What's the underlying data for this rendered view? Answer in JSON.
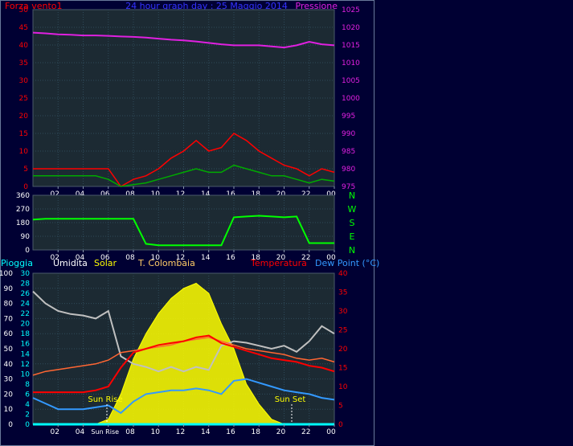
{
  "colors": {
    "background": "#000033",
    "plot_background": "#1c2a33",
    "grid": "#2e4a5a",
    "wind": "#ff0000",
    "wind_dir": "#00ff00",
    "gust": "#00aa00",
    "pressure": "#e020e0",
    "humidity": "#c0c0c0",
    "solar": "#ffff00",
    "t_colombaia": "#ff6633",
    "temperature": "#ff0000",
    "dewpoint": "#3399ff",
    "rain": "#00ffff"
  },
  "top": {
    "title": "24 hour graph day : 25 Maggio 2014",
    "left_label": "Forza vento1",
    "right_label": "Pressione",
    "left_ticks": [
      "0",
      "5",
      "10",
      "15",
      "20",
      "25",
      "30",
      "35",
      "40",
      "45",
      "50"
    ],
    "right_ticks": [
      "975",
      "980",
      "985",
      "990",
      "995",
      "1000",
      "1005",
      "1010",
      "1015",
      "1020",
      "1025"
    ],
    "x_ticks": [
      "02",
      "04",
      "06",
      "08",
      "10",
      "12",
      "14",
      "16",
      "18",
      "20",
      "22",
      "00"
    ]
  },
  "mid": {
    "left_ticks": [
      "0",
      "90",
      "180",
      "270",
      "360"
    ],
    "compass": [
      "N",
      "W",
      "S",
      "E",
      "N"
    ],
    "x_ticks": [
      "02",
      "04",
      "06",
      "08",
      "10",
      "12",
      "14",
      "16",
      "18",
      "20",
      "22",
      "00"
    ]
  },
  "bottom": {
    "labels": {
      "rain": "Pioggia",
      "humidity": "Umidita",
      "solar": "Solar",
      "t_colombaia": "T. Colombaia",
      "temperature": "Temperatura",
      "dewpoint": "Dew Point (°C)"
    },
    "humidity_ticks": [
      "0",
      "10",
      "20",
      "30",
      "40",
      "50",
      "60",
      "70",
      "80",
      "90",
      "100"
    ],
    "rain_ticks": [
      "0",
      "2",
      "4",
      "6",
      "8",
      "10",
      "12",
      "14",
      "16",
      "18",
      "20",
      "22",
      "24",
      "26",
      "28",
      "30"
    ],
    "temp_ticks": [
      "0",
      "5",
      "10",
      "15",
      "20",
      "25",
      "30",
      "35",
      "40"
    ],
    "x_ticks": [
      "02",
      "04",
      "Sun Rise",
      "08",
      "10",
      "12",
      "14",
      "16",
      "18",
      "20",
      "22",
      "00"
    ],
    "sun_rise_label": "Sun Rise",
    "sun_set_label": "Sun Set"
  },
  "chart_data": [
    {
      "type": "line",
      "title": "24 hour graph day : 25 Maggio 2014",
      "x_range_hours": [
        0,
        24
      ],
      "y_left_label": "Forza vento1",
      "y_left_range": [
        0,
        50
      ],
      "y_right_label": "Pressione",
      "y_right_range": [
        975,
        1025
      ],
      "grid": true,
      "series": [
        {
          "name": "Pressione",
          "axis": "right",
          "x": [
            0,
            1,
            2,
            3,
            4,
            5,
            6,
            7,
            8,
            9,
            10,
            11,
            12,
            13,
            14,
            15,
            16,
            17,
            18,
            19,
            20,
            21,
            22,
            23,
            24
          ],
          "y": [
            1018.5,
            1018.3,
            1018.0,
            1017.9,
            1017.7,
            1017.7,
            1017.6,
            1017.4,
            1017.3,
            1017.1,
            1016.8,
            1016.5,
            1016.3,
            1016.0,
            1015.6,
            1015.2,
            1014.9,
            1014.9,
            1014.9,
            1014.6,
            1014.3,
            1014.9,
            1015.9,
            1015.2,
            1014.9
          ]
        },
        {
          "name": "Forza vento1",
          "axis": "left",
          "x": [
            0,
            1,
            2,
            3,
            4,
            5,
            6,
            7,
            8,
            9,
            10,
            11,
            12,
            13,
            14,
            15,
            16,
            17,
            18,
            19,
            20,
            21,
            22,
            23,
            24
          ],
          "y": [
            5,
            5,
            5,
            5,
            5,
            5,
            5,
            0,
            2,
            3,
            5,
            8,
            10,
            13,
            10,
            11,
            15,
            13,
            10,
            8,
            6,
            5,
            3,
            5,
            4
          ]
        },
        {
          "axis": "left",
          "x": [
            0,
            1,
            2,
            3,
            4,
            5,
            6,
            7,
            8,
            9,
            10,
            11,
            12,
            13,
            14,
            15,
            16,
            17,
            18,
            19,
            20,
            21,
            22,
            23,
            24
          ],
          "y": [
            3,
            3,
            3,
            3,
            3,
            3,
            2,
            0,
            0.5,
            1,
            2,
            3,
            4,
            5,
            4,
            4,
            6,
            5,
            4,
            3,
            3,
            2,
            1,
            2,
            1.5
          ]
        }
      ]
    },
    {
      "type": "line",
      "x_range_hours": [
        0,
        24
      ],
      "y_range": [
        0,
        360
      ],
      "y_ticks_right": [
        "N",
        "W",
        "S",
        "E",
        "N"
      ],
      "series": [
        {
          "axis": "left",
          "x": [
            0,
            1,
            2,
            3,
            4,
            5,
            6,
            7,
            8,
            9,
            10,
            11,
            12,
            13,
            14,
            15,
            16,
            17,
            18,
            19,
            20,
            21,
            22,
            23,
            24
          ],
          "y": [
            200,
            205,
            205,
            205,
            205,
            205,
            205,
            205,
            205,
            40,
            30,
            30,
            30,
            30,
            30,
            30,
            215,
            220,
            225,
            220,
            215,
            220,
            45,
            45,
            45
          ]
        }
      ]
    },
    {
      "type": "line",
      "x_range_hours": [
        0,
        24
      ],
      "y_left_outer_range": [
        0,
        100
      ],
      "y_left_inner_range": [
        0,
        30
      ],
      "y_right_range": [
        0,
        40
      ],
      "grid": true,
      "series": [
        {
          "name": "Umidita",
          "axis": "left_outer",
          "x": [
            0,
            1,
            2,
            3,
            4,
            5,
            6,
            7,
            8,
            9,
            10,
            11,
            12,
            13,
            14,
            15,
            16,
            17,
            18,
            19,
            20,
            21,
            22,
            23,
            24
          ],
          "y": [
            88,
            80,
            75,
            73,
            72,
            70,
            75,
            45,
            40,
            38,
            35,
            38,
            35,
            38,
            36,
            52,
            55,
            54,
            52,
            50,
            52,
            48,
            55,
            65,
            60
          ]
        },
        {
          "name": "Solar",
          "axis": "left_inner",
          "x": [
            0,
            1,
            2,
            3,
            4,
            5,
            6,
            7,
            8,
            9,
            10,
            11,
            12,
            13,
            14,
            15,
            16,
            17,
            18,
            19,
            20,
            21,
            22,
            23,
            24
          ],
          "y": [
            0,
            0,
            0,
            0,
            0,
            0,
            1,
            6,
            13,
            18,
            22,
            25,
            27,
            28,
            26,
            20,
            15,
            8,
            4,
            1,
            0,
            0,
            0,
            0,
            0
          ]
        },
        {
          "name": "T. Colombaia",
          "axis": "right",
          "x": [
            0,
            1,
            2,
            3,
            4,
            5,
            6,
            7,
            8,
            9,
            10,
            11,
            12,
            13,
            14,
            15,
            16,
            17,
            18,
            19,
            20,
            21,
            22,
            23,
            24
          ],
          "y": [
            13,
            14,
            14.5,
            15,
            15.5,
            16,
            17,
            19,
            19.5,
            20,
            20.5,
            21,
            22,
            22.5,
            23,
            22,
            21,
            20,
            19.5,
            19,
            18.5,
            17.5,
            17,
            17.5,
            16.5
          ]
        },
        {
          "name": "Temperatura",
          "axis": "right",
          "x": [
            0,
            1,
            2,
            3,
            4,
            5,
            6,
            7,
            8,
            9,
            10,
            11,
            12,
            13,
            14,
            15,
            16,
            17,
            18,
            19,
            20,
            21,
            22,
            23,
            24
          ],
          "y": [
            8.5,
            8.5,
            8.5,
            8.5,
            8.5,
            9,
            10,
            15,
            19,
            20,
            21,
            21.5,
            22,
            23,
            23.5,
            21.5,
            20.5,
            19.5,
            18.5,
            17.5,
            17,
            16.5,
            15.5,
            15,
            14
          ]
        },
        {
          "name": "Dew Point (°C)",
          "axis": "right",
          "x": [
            0,
            1,
            2,
            3,
            4,
            5,
            6,
            7,
            8,
            9,
            10,
            11,
            12,
            13,
            14,
            15,
            16,
            17,
            18,
            19,
            20,
            21,
            22,
            23,
            24
          ],
          "y": [
            7,
            5.5,
            4,
            4,
            4,
            4.5,
            5,
            3,
            6,
            8,
            8.5,
            9,
            9,
            9.5,
            9,
            8,
            11.5,
            12,
            11,
            10,
            9,
            8.5,
            8,
            7,
            6.5
          ]
        },
        {
          "name": "Pioggia",
          "axis": "left_inner",
          "x": [
            0,
            24
          ],
          "y": [
            0,
            0
          ]
        }
      ]
    }
  ]
}
